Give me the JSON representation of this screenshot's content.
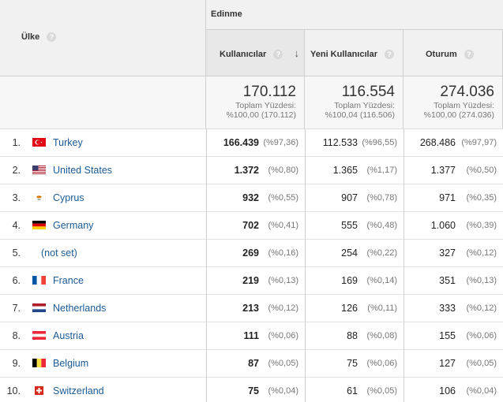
{
  "header": {
    "country_col": "Ülke",
    "group": "Edinme",
    "col_users": "Kullanıcılar",
    "col_new_users": "Yeni Kullanıcılar",
    "col_sessions": "Oturum",
    "help_glyph": "?",
    "sort_glyph": "↓"
  },
  "totals": {
    "users": "170.112",
    "users_sub1": "Toplam Yüzdesi:",
    "users_sub2": "%100,00 (170.112)",
    "new_users": "116.554",
    "new_users_sub1": "Toplam Yüzdesi:",
    "new_users_sub2": "%100,04 (116.506)",
    "sessions": "274.036",
    "sessions_sub1": "Toplam Yüzdesi:",
    "sessions_sub2": "%100,00 (274.036)"
  },
  "rows": [
    {
      "idx": "1.",
      "country": "Turkey",
      "flag": "tr",
      "users": "166.439",
      "users_pct": "(%97,36)",
      "new": "112.533",
      "new_pct": "(%96,55)",
      "sess": "268.486",
      "sess_pct": "(%97,97)"
    },
    {
      "idx": "2.",
      "country": "United States",
      "flag": "us",
      "users": "1.372",
      "users_pct": "(%0,80)",
      "new": "1.365",
      "new_pct": "(%1,17)",
      "sess": "1.377",
      "sess_pct": "(%0,50)"
    },
    {
      "idx": "3.",
      "country": "Cyprus",
      "flag": "cy",
      "users": "932",
      "users_pct": "(%0,55)",
      "new": "907",
      "new_pct": "(%0,78)",
      "sess": "971",
      "sess_pct": "(%0,35)"
    },
    {
      "idx": "4.",
      "country": "Germany",
      "flag": "de",
      "users": "702",
      "users_pct": "(%0,41)",
      "new": "555",
      "new_pct": "(%0,48)",
      "sess": "1.060",
      "sess_pct": "(%0,39)"
    },
    {
      "idx": "5.",
      "country": "(not set)",
      "flag": "",
      "users": "269",
      "users_pct": "(%0,16)",
      "new": "254",
      "new_pct": "(%0,22)",
      "sess": "327",
      "sess_pct": "(%0,12)"
    },
    {
      "idx": "6.",
      "country": "France",
      "flag": "fr",
      "users": "219",
      "users_pct": "(%0,13)",
      "new": "169",
      "new_pct": "(%0,14)",
      "sess": "351",
      "sess_pct": "(%0,13)"
    },
    {
      "idx": "7.",
      "country": "Netherlands",
      "flag": "nl",
      "users": "213",
      "users_pct": "(%0,12)",
      "new": "126",
      "new_pct": "(%0,11)",
      "sess": "333",
      "sess_pct": "(%0,12)"
    },
    {
      "idx": "8.",
      "country": "Austria",
      "flag": "at",
      "users": "111",
      "users_pct": "(%0,06)",
      "new": "88",
      "new_pct": "(%0,08)",
      "sess": "155",
      "sess_pct": "(%0,06)"
    },
    {
      "idx": "9.",
      "country": "Belgium",
      "flag": "be",
      "users": "87",
      "users_pct": "(%0,05)",
      "new": "75",
      "new_pct": "(%0,06)",
      "sess": "127",
      "sess_pct": "(%0,05)"
    },
    {
      "idx": "10.",
      "country": "Switzerland",
      "flag": "ch",
      "users": "75",
      "users_pct": "(%0,04)",
      "new": "61",
      "new_pct": "(%0,05)",
      "sess": "106",
      "sess_pct": "(%0,04)"
    }
  ],
  "colors": {
    "link": "#1a5a96",
    "header_bg": "#f1f1f1",
    "totals_bg": "#f7f7f7",
    "border": "#cfcfcf"
  }
}
